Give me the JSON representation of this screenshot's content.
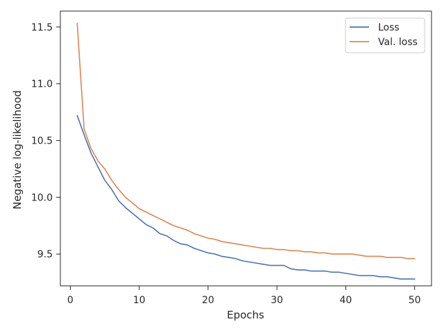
{
  "chart_data": {
    "type": "line",
    "xlabel": "Epochs",
    "ylabel": "Negative log-likelihood",
    "xlim": [
      -1.45,
      52.45
    ],
    "ylim": [
      9.22,
      11.64
    ],
    "xticks": [
      0,
      10,
      20,
      30,
      40,
      50
    ],
    "yticks": [
      9.5,
      10.0,
      10.5,
      11.0,
      11.5
    ],
    "ytick_labels": [
      "9.5",
      "10.0",
      "10.5",
      "11.0",
      "11.5"
    ],
    "grid": false,
    "legend_position": "top-right",
    "x": [
      1,
      2,
      3,
      4,
      5,
      6,
      7,
      8,
      9,
      10,
      11,
      12,
      13,
      14,
      15,
      16,
      17,
      18,
      19,
      20,
      21,
      22,
      23,
      24,
      25,
      26,
      27,
      28,
      29,
      30,
      31,
      32,
      33,
      34,
      35,
      36,
      37,
      38,
      39,
      40,
      41,
      42,
      43,
      44,
      45,
      46,
      47,
      48,
      49,
      50
    ],
    "series": [
      {
        "name": "Loss",
        "color": "#4c72b0",
        "values": [
          10.72,
          10.55,
          10.39,
          10.27,
          10.15,
          10.07,
          9.97,
          9.91,
          9.86,
          9.81,
          9.76,
          9.73,
          9.68,
          9.66,
          9.62,
          9.59,
          9.58,
          9.55,
          9.53,
          9.51,
          9.5,
          9.48,
          9.47,
          9.46,
          9.44,
          9.43,
          9.42,
          9.41,
          9.4,
          9.4,
          9.4,
          9.37,
          9.36,
          9.36,
          9.35,
          9.35,
          9.35,
          9.34,
          9.34,
          9.33,
          9.32,
          9.31,
          9.31,
          9.31,
          9.3,
          9.3,
          9.29,
          9.28,
          9.28,
          9.28
        ]
      },
      {
        "name": "Val. loss",
        "color": "#dd8452",
        "values": [
          11.53,
          10.6,
          10.43,
          10.32,
          10.25,
          10.15,
          10.07,
          10.0,
          9.95,
          9.9,
          9.87,
          9.84,
          9.81,
          9.78,
          9.75,
          9.73,
          9.71,
          9.68,
          9.66,
          9.64,
          9.63,
          9.61,
          9.6,
          9.59,
          9.58,
          9.57,
          9.56,
          9.55,
          9.55,
          9.54,
          9.54,
          9.53,
          9.53,
          9.52,
          9.52,
          9.51,
          9.51,
          9.5,
          9.5,
          9.5,
          9.5,
          9.49,
          9.48,
          9.48,
          9.48,
          9.47,
          9.47,
          9.47,
          9.46,
          9.46
        ]
      }
    ]
  }
}
